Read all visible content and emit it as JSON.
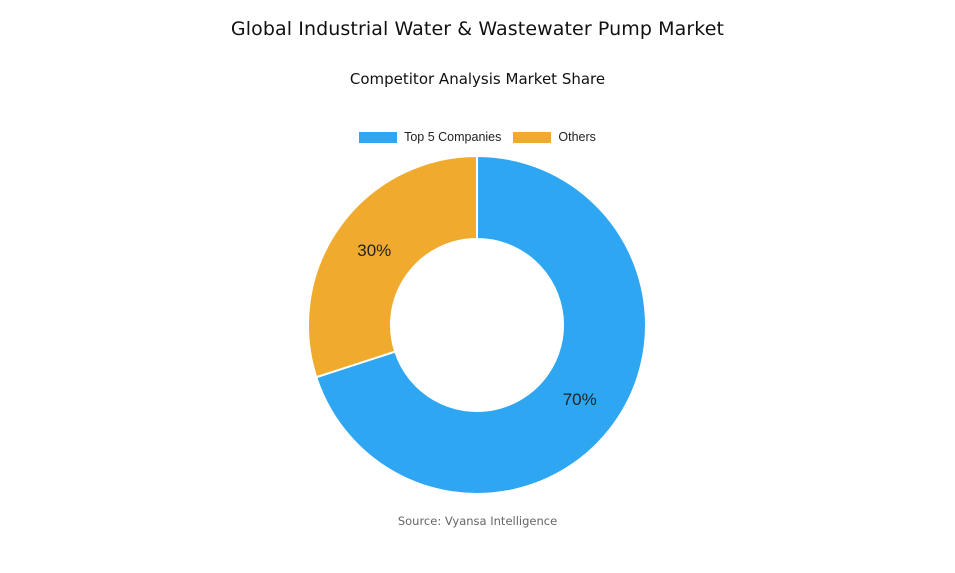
{
  "title": "Global Industrial Water & Wastewater Pump Market",
  "subtitle": "Competitor Analysis Market Share",
  "source": "Source: Vyansa Intelligence",
  "chart_data": {
    "type": "pie",
    "variant": "donut",
    "categories": [
      "Top 5 Companies",
      "Others"
    ],
    "values": [
      70,
      30
    ],
    "data_labels": [
      "70%",
      "30%"
    ],
    "colors": [
      "#2ea6f2",
      "#f0ab2e"
    ],
    "legend_position": "top",
    "start_angle_deg": 0,
    "direction": "clockwise"
  }
}
